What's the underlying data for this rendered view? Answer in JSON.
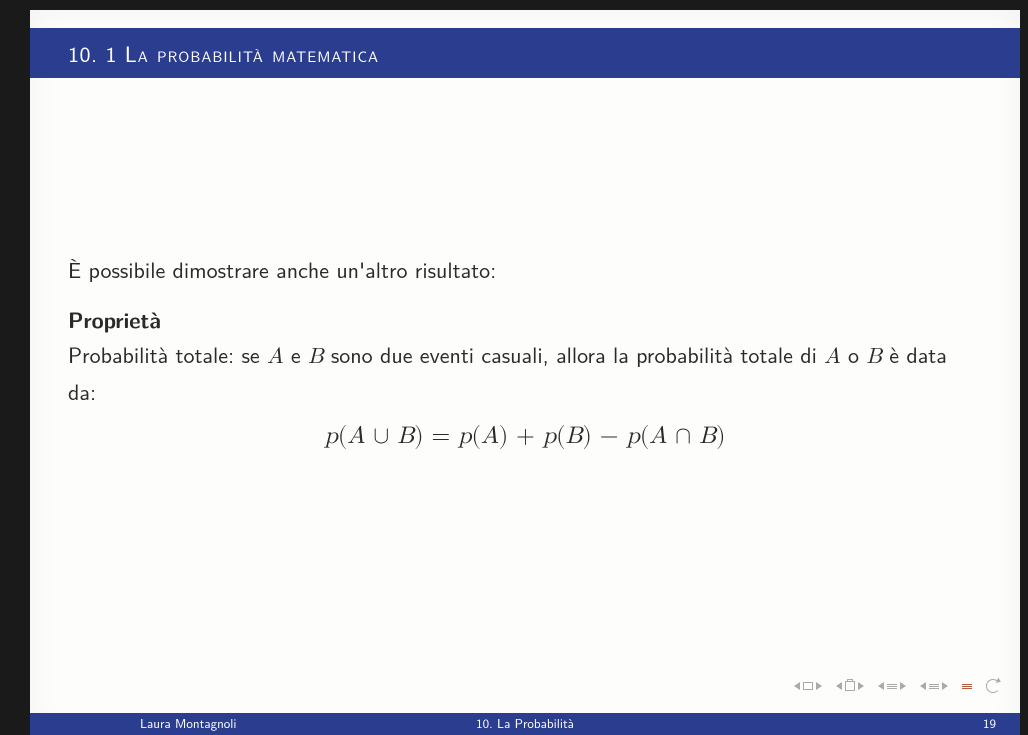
{
  "colors": {
    "header_bg": "#2a3d8f",
    "header_text": "#ffffff",
    "page_bg": "#fdfdfb",
    "body_text": "#2a2a2a",
    "nav_icon": "#aaaaaa",
    "nav_accent": "#b85c3e",
    "footer_bg": "#2a3d8f",
    "footer_text": "#ffffff"
  },
  "header": {
    "section_number": "10. 1",
    "section_title": "La probabilità matematica"
  },
  "body": {
    "intro": "È possibile dimostrare anche un'altro risultato:",
    "property_heading": "Proprietà",
    "property_text_1": "Probabilità totale: se ",
    "property_A": "A",
    "property_and": " e ",
    "property_B": "B",
    "property_text_2": " sono due eventi casuali, allora la probabilità totale di ",
    "property_A2": "A",
    "property_or": " o ",
    "property_B2": "B",
    "property_text_3": " è data da:",
    "formula": "p(A ∪ B) = p(A) + p(B) − p(A ∩ B)"
  },
  "footer": {
    "author": "Laura Montagnoli",
    "title": "10. La Probabilità",
    "page": "19"
  }
}
